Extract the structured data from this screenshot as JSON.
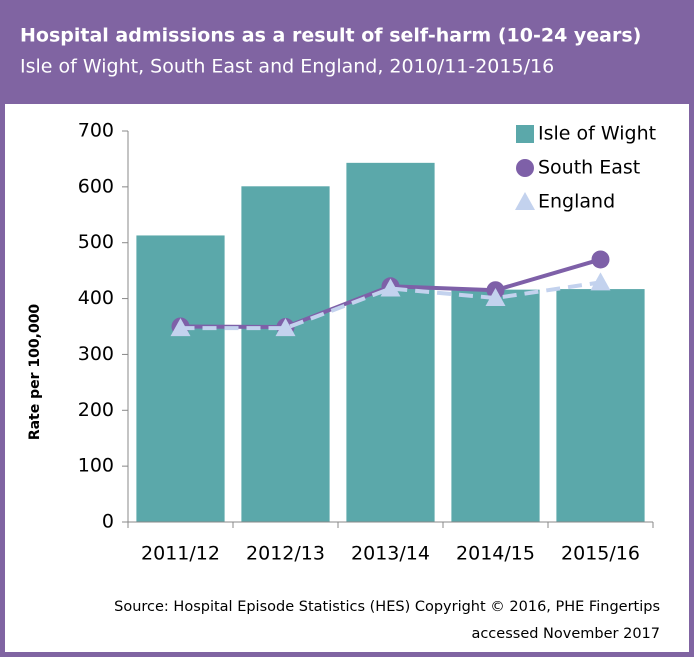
{
  "chart_data": {
    "type": "bar",
    "title": "Hospital admissions as a result of self-harm (10-24 years)",
    "subtitle": "Isle of Wight, South East and England, 2010/11-2015/16",
    "y_label": "Rate per 100,000",
    "source": [
      "Source: Hospital Episode Statistics (HES) Copyright © 2016, PHE  Fingertips",
      "accessed November 2017"
    ],
    "categories": [
      "2011/12",
      "2012/13",
      "2013/14",
      "2014/15",
      "2015/16"
    ],
    "series": [
      {
        "name": "Isle of Wight",
        "type": "bar",
        "color": "#5ba8aa",
        "values": [
          513,
          601,
          643,
          416,
          417
        ]
      },
      {
        "name": "South East",
        "type": "line",
        "color": "#7e60a8",
        "values": [
          350,
          349,
          422,
          415,
          470
        ]
      },
      {
        "name": "England",
        "type": "line",
        "color": "#c3d2ee",
        "dashed": true,
        "values": [
          347,
          347,
          418,
          401,
          429
        ]
      }
    ],
    "ylim": [
      0,
      700
    ],
    "yticks": [
      0,
      100,
      200,
      300,
      400,
      500,
      600,
      700
    ],
    "legend": "top-right"
  }
}
